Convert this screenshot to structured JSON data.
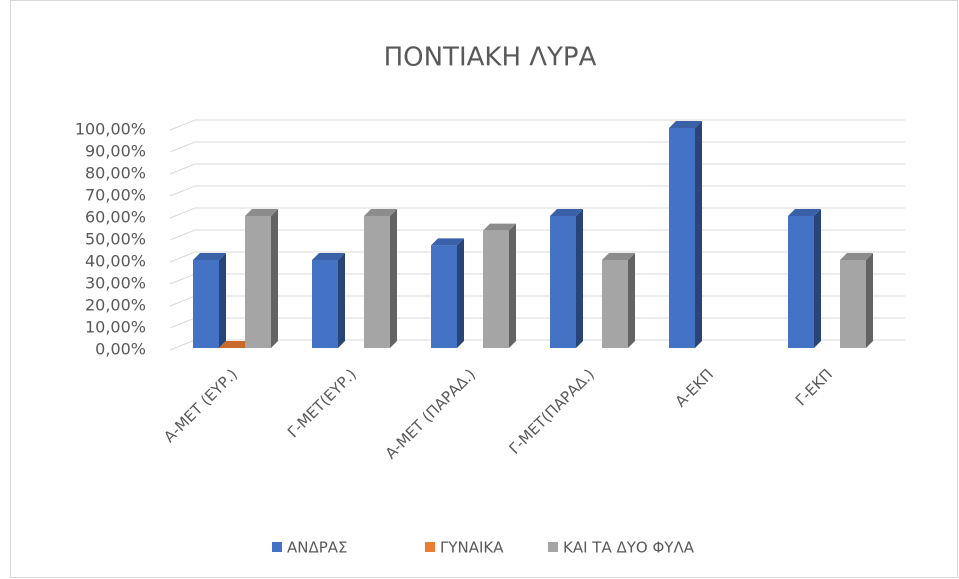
{
  "chart_data": {
    "type": "bar3d",
    "title": "ΠΟΝΤΙΑΚΗ ΛΥΡΑ",
    "categories": [
      "Α-ΜΕΤ (ΕΥΡ.)",
      "Γ-ΜΕΤ(ΕΥΡ.)",
      "Α-ΜΕΤ (ΠΑΡΑΔ.)",
      "Γ-ΜΕΤ(ΠΑΡΑΔ.)",
      "Α-ΕΚΠ",
      "Γ-ΕΚΠ"
    ],
    "series": [
      {
        "name": "ΑΝΔΡΑΣ",
        "color": "#4472c4",
        "values": [
          40,
          40,
          46.67,
          60,
          100,
          60
        ]
      },
      {
        "name": "ΓΥΝΑΙΚΑ",
        "color": "#ed7d31",
        "values": [
          0,
          null,
          null,
          null,
          null,
          null
        ]
      },
      {
        "name": "ΚΑΙ ΤΑ ΔΥΟ ΦΥΛΑ",
        "color": "#a5a5a5",
        "values": [
          60,
          60,
          53.33,
          40,
          null,
          40
        ]
      }
    ],
    "ylim": [
      0,
      100
    ],
    "yticks": [
      {
        "value": 0,
        "label": "0,00%"
      },
      {
        "value": 10,
        "label": "10,00%"
      },
      {
        "value": 20,
        "label": "20,00%"
      },
      {
        "value": 30,
        "label": "30,00%"
      },
      {
        "value": 40,
        "label": "40,00%"
      },
      {
        "value": 50,
        "label": "50,00%"
      },
      {
        "value": 60,
        "label": "60,00%"
      },
      {
        "value": 70,
        "label": "70,00%"
      },
      {
        "value": 80,
        "label": "80,00%"
      },
      {
        "value": 90,
        "label": "90,00%"
      },
      {
        "value": 100,
        "label": "100,00%"
      }
    ],
    "grid": true,
    "legend": "bottom"
  }
}
